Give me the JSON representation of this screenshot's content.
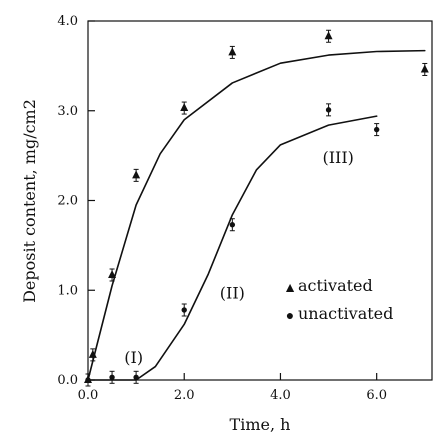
{
  "chart_data": {
    "type": "scatter",
    "xlabel": "Time, h",
    "ylabel": "Deposit content, mg/cm2",
    "xlim": [
      0,
      7.15
    ],
    "ylim": [
      0,
      4.0
    ],
    "x_ticks": [
      0.0,
      2.0,
      4.0,
      6.0
    ],
    "y_ticks": [
      0.0,
      1.0,
      2.0,
      3.0,
      4.0
    ],
    "x_tick_labels": [
      "0.0",
      "2.0",
      "4.0",
      "6.0"
    ],
    "y_tick_labels": [
      "0.0",
      "1.0",
      "2.0",
      "3.0",
      "4.0"
    ],
    "series": [
      {
        "name": "activated",
        "marker": "triangle",
        "points": [
          {
            "x": 0.0,
            "y": 0.0
          },
          {
            "x": 0.1,
            "y": 0.28
          },
          {
            "x": 0.5,
            "y": 1.17
          },
          {
            "x": 1.0,
            "y": 2.28
          },
          {
            "x": 2.0,
            "y": 3.03
          },
          {
            "x": 3.0,
            "y": 3.65
          },
          {
            "x": 5.0,
            "y": 3.83
          },
          {
            "x": 7.0,
            "y": 3.46
          }
        ],
        "fit_curve": [
          {
            "x": 0.0,
            "y": 0.0
          },
          {
            "x": 0.5,
            "y": 1.05
          },
          {
            "x": 1.0,
            "y": 1.95
          },
          {
            "x": 1.5,
            "y": 2.52
          },
          {
            "x": 2.0,
            "y": 2.9
          },
          {
            "x": 3.0,
            "y": 3.31
          },
          {
            "x": 4.0,
            "y": 3.53
          },
          {
            "x": 5.0,
            "y": 3.62
          },
          {
            "x": 6.0,
            "y": 3.66
          },
          {
            "x": 7.0,
            "y": 3.67
          }
        ]
      },
      {
        "name": "unactivated",
        "marker": "circle",
        "points": [
          {
            "x": 0.0,
            "y": 0.0
          },
          {
            "x": 0.5,
            "y": 0.03
          },
          {
            "x": 1.0,
            "y": 0.03
          },
          {
            "x": 2.0,
            "y": 0.78
          },
          {
            "x": 3.0,
            "y": 1.73
          },
          {
            "x": 5.0,
            "y": 3.01
          },
          {
            "x": 6.0,
            "y": 2.79
          }
        ],
        "fit_curve": [
          {
            "x": 0.0,
            "y": 0.0
          },
          {
            "x": 1.0,
            "y": 0.0
          },
          {
            "x": 1.4,
            "y": 0.15
          },
          {
            "x": 2.0,
            "y": 0.62
          },
          {
            "x": 2.5,
            "y": 1.18
          },
          {
            "x": 3.0,
            "y": 1.84
          },
          {
            "x": 3.5,
            "y": 2.34
          },
          {
            "x": 4.0,
            "y": 2.62
          },
          {
            "x": 5.0,
            "y": 2.84
          },
          {
            "x": 6.0,
            "y": 2.94
          }
        ]
      }
    ],
    "annotations": [
      {
        "text": "(I)",
        "x": 0.95,
        "y": 0.19
      },
      {
        "text": "(II)",
        "x": 3.0,
        "y": 0.91
      },
      {
        "text": "(III)",
        "x": 5.2,
        "y": 2.42
      }
    ],
    "legend": {
      "location": "center-right",
      "entries": [
        {
          "label": "activated",
          "symbol": "triangle"
        },
        {
          "label": "unactivated",
          "symbol": "circle"
        }
      ]
    },
    "colors": {
      "ink": "#111111",
      "background": "#ffffff"
    },
    "grid": false
  }
}
